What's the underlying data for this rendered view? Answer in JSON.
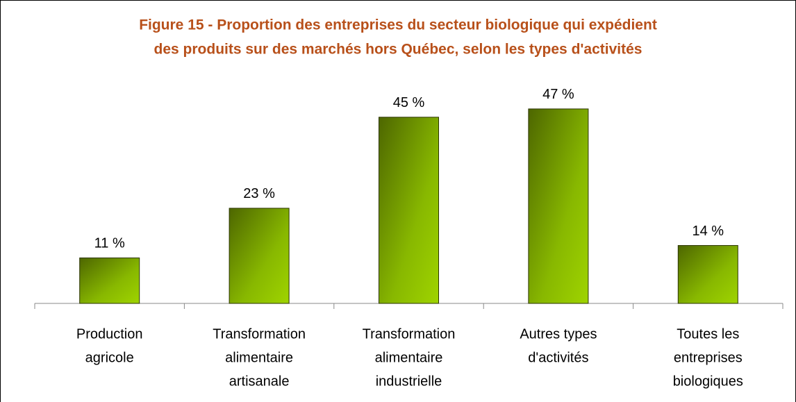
{
  "chart_data": {
    "type": "bar",
    "title": [
      "Figure 15 - Proportion des entreprises du secteur biologique qui expédient",
      "des produits sur des marchés hors Québec, selon les types d'activités"
    ],
    "categories": [
      [
        "Production",
        "agricole"
      ],
      [
        "Transformation",
        "alimentaire",
        "artisanale"
      ],
      [
        "Transformation",
        "alimentaire",
        "industrielle"
      ],
      [
        "Autres types",
        "d'activités"
      ],
      [
        "Toutes les",
        "entreprises",
        "biologiques"
      ]
    ],
    "values": [
      11,
      23,
      45,
      47,
      14
    ],
    "value_labels": [
      "11 %",
      "23 %",
      "45 %",
      "47 %",
      "14 %"
    ],
    "color": "#99cc00",
    "ylim": [
      0,
      50
    ]
  }
}
